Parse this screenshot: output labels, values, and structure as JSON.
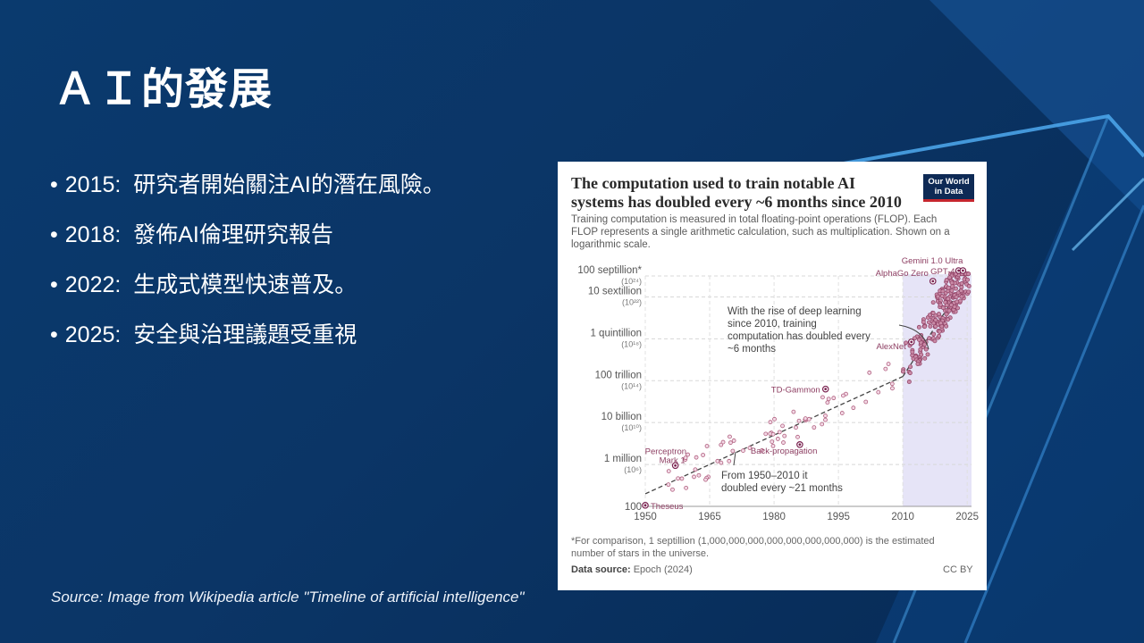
{
  "slide": {
    "title": "ＡＩ的發展",
    "bullets": [
      {
        "year": "2015:",
        "text": "研究者開始關注AI的潛在風險。"
      },
      {
        "year": "2018:",
        "text": "發佈AI倫理研究報告"
      },
      {
        "year": "2022:",
        "text": "生成式模型快速普及。"
      },
      {
        "year": "2025:",
        "text": "安全與治理議題受重視"
      }
    ],
    "source": "Source: Image from Wikipedia article \"Timeline of artificial intelligence\""
  },
  "chart_data": {
    "type": "scatter",
    "title": "The computation used to train notable AI systems has doubled every ~6 months since 2010",
    "subtitle": "Training computation is measured in total floating-point operations (FLOP). Each FLOP represents a single arithmetic calculation, such as multiplication. Shown on a logarithmic scale.",
    "logo_line1": "Our World",
    "logo_line2": "in Data",
    "x_ticks": [
      "1950",
      "1965",
      "1980",
      "1995",
      "2010",
      "2025"
    ],
    "xlim": [
      1950,
      2026
    ],
    "ylim_log10": [
      2,
      24
    ],
    "y_ticks": [
      {
        "label": "100 septillion*",
        "power": "(10²⁴)",
        "log10": 24
      },
      {
        "label": "10 sextillion",
        "power": "(10²²)",
        "log10": 22
      },
      {
        "label": "1 quintillion",
        "power": "(10¹⁸)",
        "log10": 18
      },
      {
        "label": "100 trillion",
        "power": "(10¹⁴)",
        "log10": 14
      },
      {
        "label": "10 billion",
        "power": "(10¹⁰)",
        "log10": 10
      },
      {
        "label": "1 million",
        "power": "(10⁶)",
        "log10": 6
      },
      {
        "label": "100",
        "power": "",
        "log10": 2
      }
    ],
    "labeled_points": [
      {
        "name": "Theseus",
        "year": 1950,
        "log10": 2.1
      },
      {
        "name": "Perceptron Mark 1",
        "year": 1957,
        "log10": 5.9
      },
      {
        "name": "Back-propagation",
        "year": 1986,
        "log10": 7.9
      },
      {
        "name": "TD-Gammon",
        "year": 1992,
        "log10": 13.2
      },
      {
        "name": "AlexNet",
        "year": 2012,
        "log10": 17.7
      },
      {
        "name": "AlphaGo Zero",
        "year": 2017,
        "log10": 23.5
      },
      {
        "name": "GPT-4",
        "year": 2023,
        "log10": 25.3
      },
      {
        "name": "Gemini 1.0 Ultra",
        "year": 2024,
        "log10": 25.7
      }
    ],
    "annotations": {
      "deep_learning": "With the rise of deep learning since 2010, training computation has doubled every ~6 months",
      "early": "From 1950–2010 it doubled every ~21 months"
    },
    "highlight_from_year": 2010,
    "footnote": "*For comparison, 1 septillion (1,000,000,000,000,000,000,000,000) is the estimated number of stars in the universe.",
    "data_source_label": "Data source:",
    "data_source_value": "Epoch (2024)",
    "license": "CC BY"
  }
}
